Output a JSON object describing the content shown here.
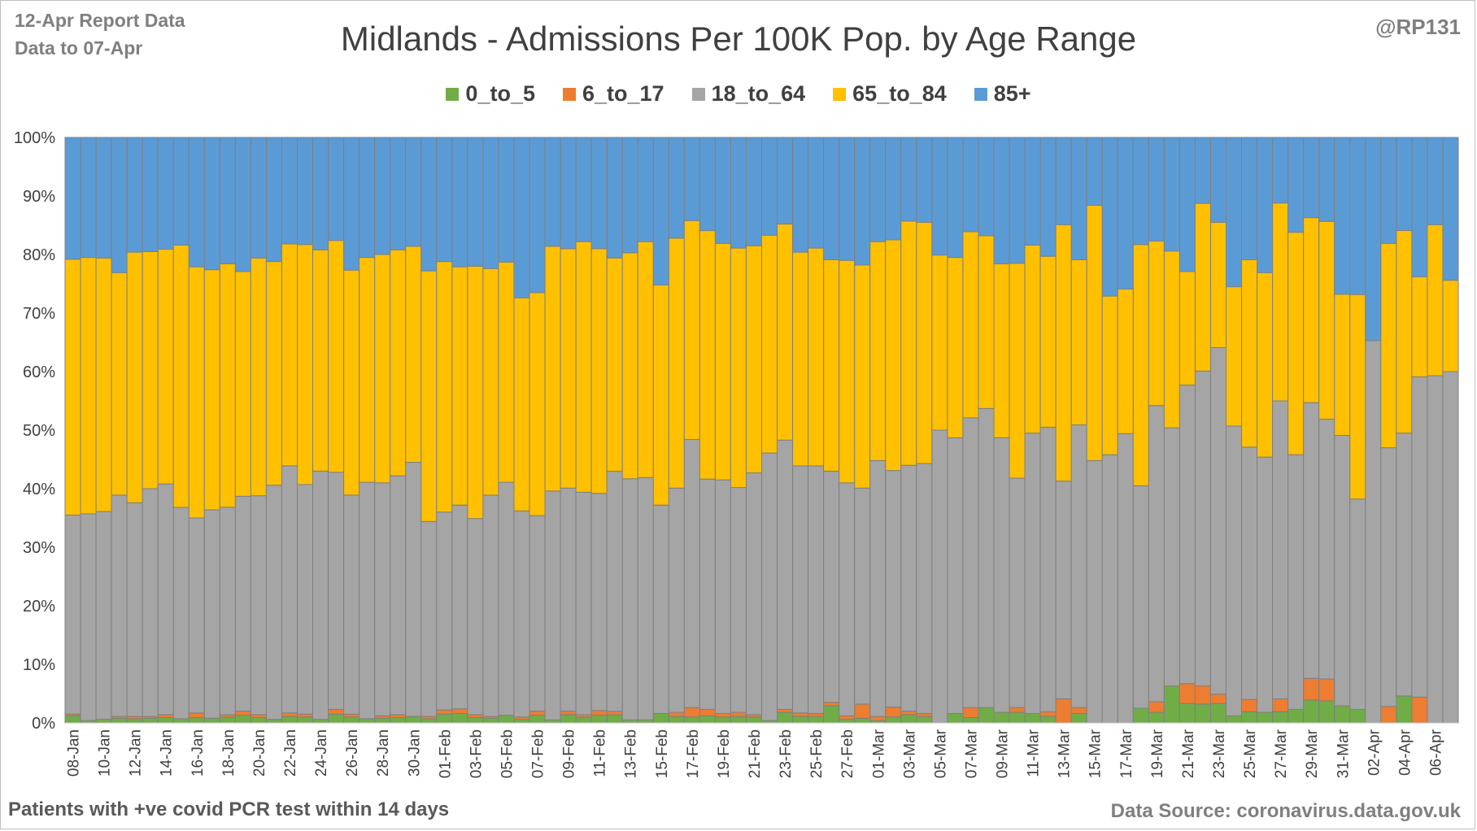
{
  "header": {
    "report_line": "12-Apr Report Data",
    "data_line": "Data to 07-Apr",
    "handle": "@RP131"
  },
  "footer": {
    "note": "Patients with  +ve covid PCR test within 14 days",
    "source": "Data Source: coronavirus.data.gov.uk"
  },
  "chart_data": {
    "type": "bar",
    "stacked": true,
    "normalized": true,
    "title": "Midlands - Admissions Per 100K Pop. by Age Range",
    "xlabel": "",
    "ylabel": "",
    "ylim": [
      0,
      100
    ],
    "yticks": [
      "0%",
      "10%",
      "20%",
      "30%",
      "40%",
      "50%",
      "60%",
      "70%",
      "80%",
      "90%",
      "100%"
    ],
    "grid": true,
    "legend_position": "top",
    "x_tick_labels": [
      "08-Jan",
      "10-Jan",
      "12-Jan",
      "14-Jan",
      "16-Jan",
      "18-Jan",
      "20-Jan",
      "22-Jan",
      "24-Jan",
      "26-Jan",
      "28-Jan",
      "30-Jan",
      "01-Feb",
      "03-Feb",
      "05-Feb",
      "07-Feb",
      "09-Feb",
      "11-Feb",
      "13-Feb",
      "15-Feb",
      "17-Feb",
      "19-Feb",
      "21-Feb",
      "23-Feb",
      "25-Feb",
      "27-Feb",
      "01-Mar",
      "03-Mar",
      "05-Mar",
      "07-Mar",
      "09-Mar",
      "11-Mar",
      "13-Mar",
      "15-Mar",
      "17-Mar",
      "19-Mar",
      "21-Mar",
      "23-Mar",
      "25-Mar",
      "27-Mar",
      "29-Mar",
      "31-Mar",
      "02-Apr",
      "04-Apr",
      "06-Apr"
    ],
    "categories": [
      "08-Jan",
      "09-Jan",
      "10-Jan",
      "11-Jan",
      "12-Jan",
      "13-Jan",
      "14-Jan",
      "15-Jan",
      "16-Jan",
      "17-Jan",
      "18-Jan",
      "19-Jan",
      "20-Jan",
      "21-Jan",
      "22-Jan",
      "23-Jan",
      "24-Jan",
      "25-Jan",
      "26-Jan",
      "27-Jan",
      "28-Jan",
      "29-Jan",
      "30-Jan",
      "31-Jan",
      "01-Feb",
      "02-Feb",
      "03-Feb",
      "04-Feb",
      "05-Feb",
      "06-Feb",
      "07-Feb",
      "08-Feb",
      "09-Feb",
      "10-Feb",
      "11-Feb",
      "12-Feb",
      "13-Feb",
      "14-Feb",
      "15-Feb",
      "16-Feb",
      "17-Feb",
      "18-Feb",
      "19-Feb",
      "20-Feb",
      "21-Feb",
      "22-Feb",
      "23-Feb",
      "24-Feb",
      "25-Feb",
      "26-Feb",
      "27-Feb",
      "28-Feb",
      "01-Mar",
      "02-Mar",
      "03-Mar",
      "04-Mar",
      "05-Mar",
      "06-Mar",
      "07-Mar",
      "08-Mar",
      "09-Mar",
      "10-Mar",
      "11-Mar",
      "12-Mar",
      "13-Mar",
      "14-Mar",
      "15-Mar",
      "16-Mar",
      "17-Mar",
      "18-Mar",
      "19-Mar",
      "20-Mar",
      "21-Mar",
      "22-Mar",
      "23-Mar",
      "24-Mar",
      "25-Mar",
      "26-Mar",
      "27-Mar",
      "28-Mar",
      "29-Mar",
      "30-Mar",
      "31-Mar",
      "01-Apr",
      "02-Apr",
      "03-Apr",
      "04-Apr",
      "05-Apr",
      "06-Apr",
      "07-Apr"
    ],
    "series": [
      {
        "name": "0_to_5",
        "color": "#70ad47",
        "values": [
          1.2,
          0.4,
          0.6,
          0.8,
          0.7,
          0.8,
          0.9,
          0.7,
          0.9,
          0.8,
          1.0,
          1.3,
          0.9,
          0.6,
          1.1,
          1.0,
          0.6,
          1.5,
          1.0,
          0.7,
          0.8,
          0.9,
          1.1,
          0.7,
          1.5,
          1.6,
          0.9,
          0.8,
          1.3,
          0.6,
          1.3,
          0.5,
          1.4,
          1.0,
          1.3,
          1.4,
          0.5,
          0.5,
          1.6,
          1.1,
          1.0,
          1.2,
          1.0,
          1.1,
          1.0,
          0.4,
          1.8,
          1.1,
          1.1,
          2.9,
          0.6,
          0.8,
          0.4,
          1.0,
          1.4,
          1.1,
          0.0,
          1.6,
          0.9,
          2.6,
          1.8,
          1.8,
          1.6,
          1.1,
          0.0,
          1.6,
          0.0,
          0.0,
          0.0,
          2.5,
          1.8,
          6.3,
          3.3,
          3.3,
          3.3,
          1.2,
          1.9,
          1.8,
          1.9,
          2.3,
          3.9,
          3.9,
          2.9,
          2.3,
          0.0,
          0.0,
          4.6,
          0.0,
          0.0,
          0.0
        ]
      },
      {
        "name": "6_to_17",
        "color": "#ed7d31",
        "values": [
          0.3,
          0.0,
          0.0,
          0.3,
          0.4,
          0.3,
          0.5,
          0.0,
          0.8,
          0.0,
          0.4,
          0.7,
          0.5,
          0.0,
          0.6,
          0.5,
          0.0,
          0.8,
          0.5,
          0.0,
          0.4,
          0.5,
          0.0,
          0.4,
          0.7,
          0.8,
          0.5,
          0.3,
          0.0,
          0.4,
          0.7,
          0.0,
          0.6,
          0.4,
          0.8,
          0.6,
          0.0,
          0.0,
          0.0,
          0.7,
          1.6,
          1.1,
          0.6,
          0.7,
          0.4,
          0.0,
          0.5,
          0.6,
          0.5,
          0.6,
          0.6,
          2.4,
          0.7,
          1.7,
          0.6,
          0.5,
          0.0,
          0.0,
          1.7,
          0.0,
          0.0,
          0.8,
          0.0,
          0.8,
          4.1,
          1.0,
          0.0,
          0.0,
          0.0,
          0.0,
          1.8,
          0.0,
          3.4,
          3.2,
          1.6,
          0.0,
          2.1,
          0.0,
          2.2,
          0.0,
          3.7,
          3.9,
          0.0,
          0.0,
          0.0,
          2.8,
          0.0,
          4.4,
          0.0,
          0.0
        ]
      },
      {
        "name": "18_to_64",
        "color": "#a5a5a5",
        "values": [
          34.0,
          35.3,
          35.5,
          37.8,
          36.5,
          38.9,
          39.4,
          36.1,
          33.3,
          35.6,
          35.8,
          36.7,
          37.4,
          40.0,
          42.2,
          39.2,
          42.4,
          40.5,
          37.8,
          40.4,
          39.8,
          40.8,
          43.4,
          33.3,
          33.8,
          34.8,
          33.5,
          37.8,
          39.8,
          35.2,
          33.4,
          39.1,
          38.1,
          38.0,
          37.1,
          41.4,
          41.2,
          41.4,
          35.6,
          38.3,
          45.8,
          39.3,
          39.9,
          38.4,
          41.3,
          45.7,
          46.0,
          42.2,
          42.3,
          39.5,
          39.8,
          36.9,
          43.7,
          40.4,
          42.0,
          42.7,
          50.0,
          47.1,
          49.5,
          51.1,
          46.9,
          39.2,
          47.9,
          48.6,
          37.2,
          48.3,
          44.8,
          45.8,
          49.4,
          38.0,
          50.6,
          44.1,
          51.0,
          55.4,
          59.2,
          49.5,
          43.1,
          43.6,
          50.9,
          43.5,
          47.1,
          46.1,
          46.2,
          35.9,
          65.3,
          44.2,
          44.9,
          54.7,
          59.3,
          60.0
        ]
      },
      {
        "name": "65_to_84",
        "color": "#ffc000",
        "values": [
          43.7,
          43.8,
          43.3,
          38.0,
          42.8,
          40.5,
          40.1,
          44.8,
          42.9,
          41.0,
          42.0,
          38.4,
          40.6,
          38.2,
          37.9,
          41.0,
          37.8,
          39.6,
          38.8,
          38.4,
          39.0,
          38.6,
          36.9,
          42.8,
          42.8,
          40.7,
          43.1,
          38.7,
          37.6,
          36.4,
          38.1,
          41.8,
          40.9,
          42.8,
          41.8,
          36.8,
          38.6,
          40.3,
          37.6,
          42.7,
          37.4,
          42.4,
          40.4,
          40.9,
          38.8,
          37.2,
          36.9,
          36.5,
          37.2,
          36.1,
          38.0,
          38.1,
          37.4,
          39.4,
          41.7,
          41.2,
          29.9,
          30.8,
          31.8,
          29.5,
          29.7,
          36.7,
          32.1,
          29.2,
          43.8,
          28.2,
          43.6,
          27.1,
          24.7,
          41.2,
          28.1,
          30.2,
          19.4,
          29.5,
          21.4,
          23.8,
          32.0,
          31.5,
          33.8,
          38.0,
          31.6,
          35.1,
          24.1,
          34.9,
          0.0,
          34.9,
          34.6,
          17.1,
          25.8,
          15.6
        ]
      },
      {
        "name": "85+",
        "color": "#5b9bd5",
        "values": [
          20.8,
          20.5,
          20.6,
          23.1,
          19.6,
          19.5,
          19.1,
          18.4,
          22.1,
          22.6,
          21.8,
          22.9,
          20.6,
          21.2,
          18.2,
          18.3,
          19.2,
          17.6,
          22.9,
          20.5,
          20.0,
          19.2,
          18.6,
          22.8,
          21.2,
          22.1,
          22.0,
          22.4,
          21.3,
          27.4,
          26.5,
          18.6,
          19.0,
          17.8,
          19.0,
          20.8,
          19.7,
          17.8,
          25.2,
          17.2,
          14.2,
          15.9,
          18.1,
          18.9,
          18.5,
          16.7,
          14.8,
          19.6,
          18.9,
          20.9,
          21.0,
          21.8,
          17.8,
          17.5,
          14.3,
          14.5,
          20.1,
          20.5,
          16.1,
          16.8,
          21.6,
          21.5,
          18.4,
          20.3,
          14.9,
          20.9,
          11.6,
          27.1,
          25.9,
          18.3,
          17.7,
          19.4,
          22.9,
          11.6,
          14.5,
          25.5,
          20.9,
          23.1,
          11.2,
          16.2,
          13.7,
          14.9,
          26.8,
          26.8,
          34.7,
          18.1,
          15.9,
          23.8,
          14.9,
          24.4
        ]
      }
    ]
  }
}
